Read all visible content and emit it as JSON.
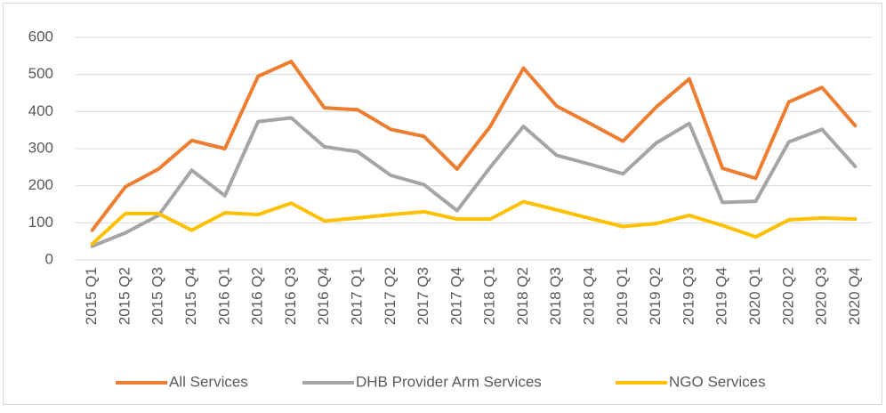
{
  "chart_data": {
    "type": "line",
    "categories": [
      "2015 Q1",
      "2015 Q2",
      "2015 Q3",
      "2015 Q4",
      "2016 Q1",
      "2016 Q2",
      "2016 Q3",
      "2016 Q4",
      "2017 Q1",
      "2017 Q2",
      "2017 Q3",
      "2017 Q4",
      "2018 Q1",
      "2018 Q2",
      "2018 Q3",
      "2018 Q4",
      "2019 Q1",
      "2019 Q2",
      "2019 Q3",
      "2019 Q4",
      "2020 Q1",
      "2020 Q2",
      "2020 Q3",
      "2020 Q4"
    ],
    "series": [
      {
        "name": "All Services",
        "color": "#ED7D31",
        "values": [
          80,
          197,
          245,
          322,
          300,
          495,
          535,
          410,
          405,
          352,
          333,
          245,
          360,
          517,
          415,
          368,
          320,
          412,
          488,
          247,
          220,
          426,
          465,
          362
        ]
      },
      {
        "name": "DHB Provider Arm Services",
        "color": "#A5A5A5",
        "values": [
          37,
          73,
          120,
          242,
          173,
          373,
          383,
          305,
          292,
          228,
          203,
          133,
          250,
          360,
          282,
          258,
          232,
          315,
          368,
          155,
          158,
          318,
          352,
          252
        ]
      },
      {
        "name": "NGO Services",
        "color": "#FFC000",
        "values": [
          43,
          125,
          125,
          80,
          127,
          122,
          153,
          105,
          113,
          122,
          130,
          110,
          110,
          157,
          135,
          112,
          90,
          98,
          120,
          93,
          62,
          108,
          113,
          110
        ]
      }
    ],
    "ylim": [
      0,
      600
    ],
    "yticks": [
      0,
      100,
      200,
      300,
      400,
      500,
      600
    ],
    "grid": true,
    "legend": "bottom"
  }
}
